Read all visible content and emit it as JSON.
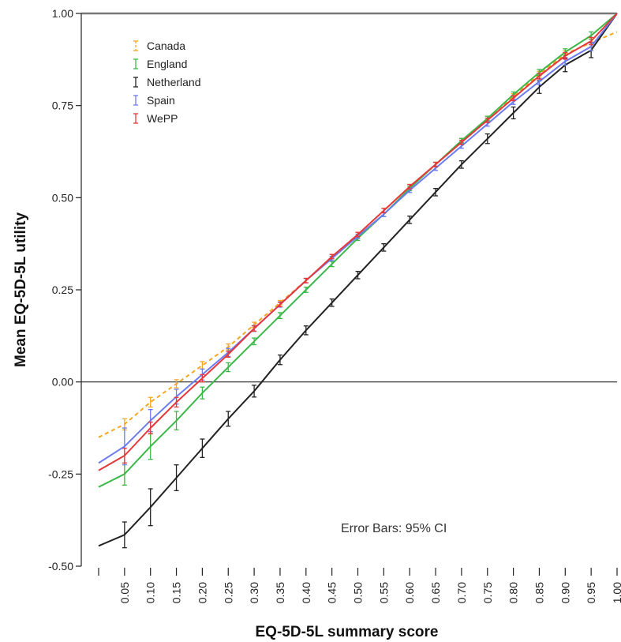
{
  "chart_data": {
    "type": "line",
    "xlabel": "EQ-5D-5L summary score",
    "ylabel": "Mean EQ-5D-5L utility",
    "ylim": [
      -0.5,
      1.0
    ],
    "xlim": [
      0.0,
      1.0
    ],
    "y_ticks": [
      -0.5,
      -0.25,
      0.0,
      0.25,
      0.5,
      0.75,
      1.0
    ],
    "y_tick_labels": [
      "-0.50",
      "-0.25",
      "0.00",
      "0.25",
      "0.50",
      "0.75",
      "1.00"
    ],
    "x_ticks": [
      0.05,
      0.1,
      0.15,
      0.2,
      0.25,
      0.3,
      0.35,
      0.4,
      0.45,
      0.5,
      0.55,
      0.6,
      0.65,
      0.7,
      0.75,
      0.8,
      0.85,
      0.9,
      0.95,
      1.0
    ],
    "x_tick_labels": [
      "0.05",
      "0.10",
      "0.15",
      "0.20",
      "0.25",
      "0.30",
      "0.35",
      "0.40",
      "0.45",
      "0.50",
      "0.55",
      "0.60",
      "0.65",
      "0.70",
      "0.75",
      "0.80",
      "0.85",
      "0.90",
      "0.95",
      "1.00"
    ],
    "reference_line_y": 0.0,
    "annotation": "Error Bars: 95% CI",
    "legend_position": "top-left",
    "x": [
      0.0,
      0.05,
      0.1,
      0.15,
      0.2,
      0.25,
      0.3,
      0.35,
      0.4,
      0.45,
      0.5,
      0.55,
      0.6,
      0.65,
      0.7,
      0.75,
      0.8,
      0.85,
      0.9,
      0.95,
      1.0
    ],
    "series": [
      {
        "name": "Canada",
        "color": "#f5a623",
        "dashed": true,
        "values": [
          -0.15,
          -0.115,
          -0.055,
          -0.005,
          0.045,
          0.095,
          0.155,
          0.215,
          0.275,
          0.34,
          0.4,
          0.465,
          0.53,
          0.59,
          0.655,
          0.715,
          0.775,
          0.835,
          0.89,
          0.92,
          0.95
        ],
        "ci": [
          0,
          0.015,
          0.013,
          0.011,
          0.01,
          0.008,
          0.007,
          0.006,
          0.006,
          0.006,
          0.006,
          0.006,
          0.006,
          0.006,
          0.006,
          0.006,
          0.007,
          0.008,
          0.009,
          0.011,
          0
        ]
      },
      {
        "name": "England",
        "color": "#3cb84a",
        "dashed": false,
        "values": [
          -0.285,
          -0.25,
          -0.175,
          -0.105,
          -0.03,
          0.04,
          0.11,
          0.18,
          0.25,
          0.32,
          0.39,
          0.455,
          0.525,
          0.59,
          0.655,
          0.715,
          0.78,
          0.84,
          0.895,
          0.94,
          1.0
        ],
        "ci": [
          0,
          0.03,
          0.035,
          0.025,
          0.016,
          0.012,
          0.009,
          0.008,
          0.007,
          0.007,
          0.006,
          0.006,
          0.006,
          0.006,
          0.006,
          0.006,
          0.007,
          0.008,
          0.009,
          0.01,
          0
        ]
      },
      {
        "name": "Netherland",
        "color": "#222222",
        "dashed": false,
        "values": [
          -0.445,
          -0.415,
          -0.34,
          -0.26,
          -0.18,
          -0.1,
          -0.025,
          0.06,
          0.14,
          0.215,
          0.29,
          0.365,
          0.44,
          0.515,
          0.59,
          0.66,
          0.73,
          0.8,
          0.86,
          0.9,
          1.0
        ],
        "ci": [
          0,
          0.035,
          0.05,
          0.035,
          0.025,
          0.02,
          0.016,
          0.013,
          0.012,
          0.01,
          0.01,
          0.01,
          0.01,
          0.01,
          0.01,
          0.013,
          0.016,
          0.017,
          0.018,
          0.02,
          0
        ]
      },
      {
        "name": "Spain",
        "color": "#6b7cf0",
        "dashed": false,
        "values": [
          -0.22,
          -0.175,
          -0.105,
          -0.04,
          0.02,
          0.08,
          0.145,
          0.21,
          0.275,
          0.335,
          0.395,
          0.455,
          0.52,
          0.58,
          0.64,
          0.7,
          0.76,
          0.815,
          0.87,
          0.91,
          1.0
        ],
        "ci": [
          0,
          0.05,
          0.03,
          0.02,
          0.015,
          0.011,
          0.008,
          0.007,
          0.006,
          0.006,
          0.006,
          0.006,
          0.006,
          0.006,
          0.006,
          0.006,
          0.007,
          0.008,
          0.01,
          0.011,
          0
        ]
      },
      {
        "name": "WePP",
        "color": "#e5383b",
        "dashed": false,
        "values": [
          -0.24,
          -0.2,
          -0.125,
          -0.055,
          0.01,
          0.075,
          0.145,
          0.21,
          0.275,
          0.34,
          0.4,
          0.465,
          0.53,
          0.59,
          0.65,
          0.71,
          0.77,
          0.83,
          0.885,
          0.925,
          1.0
        ],
        "ci": [
          0,
          0.02,
          0.016,
          0.013,
          0.01,
          0.008,
          0.007,
          0.006,
          0.006,
          0.006,
          0.006,
          0.006,
          0.006,
          0.006,
          0.006,
          0.006,
          0.007,
          0.008,
          0.009,
          0.01,
          0
        ]
      }
    ]
  }
}
